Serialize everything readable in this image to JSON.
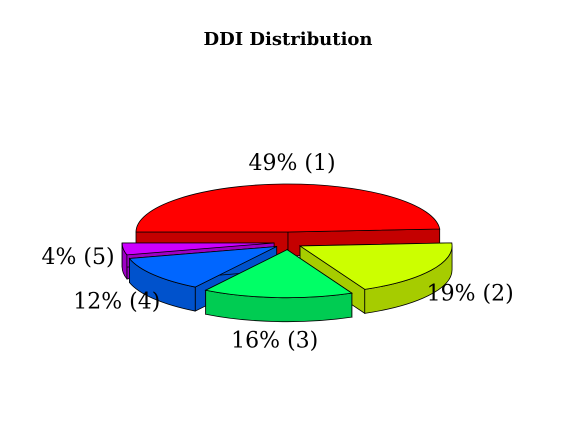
{
  "chart_data": {
    "type": "pie",
    "title": "DDI Distribution",
    "style": "3d-exploded",
    "slices": [
      {
        "category": "1",
        "percent": 49,
        "label": "49% (1)",
        "color": "#ff0000",
        "side_color": "#c40000"
      },
      {
        "category": "2",
        "percent": 19,
        "label": "19% (2)",
        "color": "#ccff00",
        "side_color": "#a6cc00"
      },
      {
        "category": "3",
        "percent": 16,
        "label": "16% (3)",
        "color": "#00ff66",
        "side_color": "#00cc52"
      },
      {
        "category": "4",
        "percent": 12,
        "label": "12% (4)",
        "color": "#0066ff",
        "side_color": "#0052cc"
      },
      {
        "category": "5",
        "percent": 4,
        "label": "4% (5)",
        "color": "#cc00ff",
        "side_color": "#9d00c4"
      }
    ]
  }
}
